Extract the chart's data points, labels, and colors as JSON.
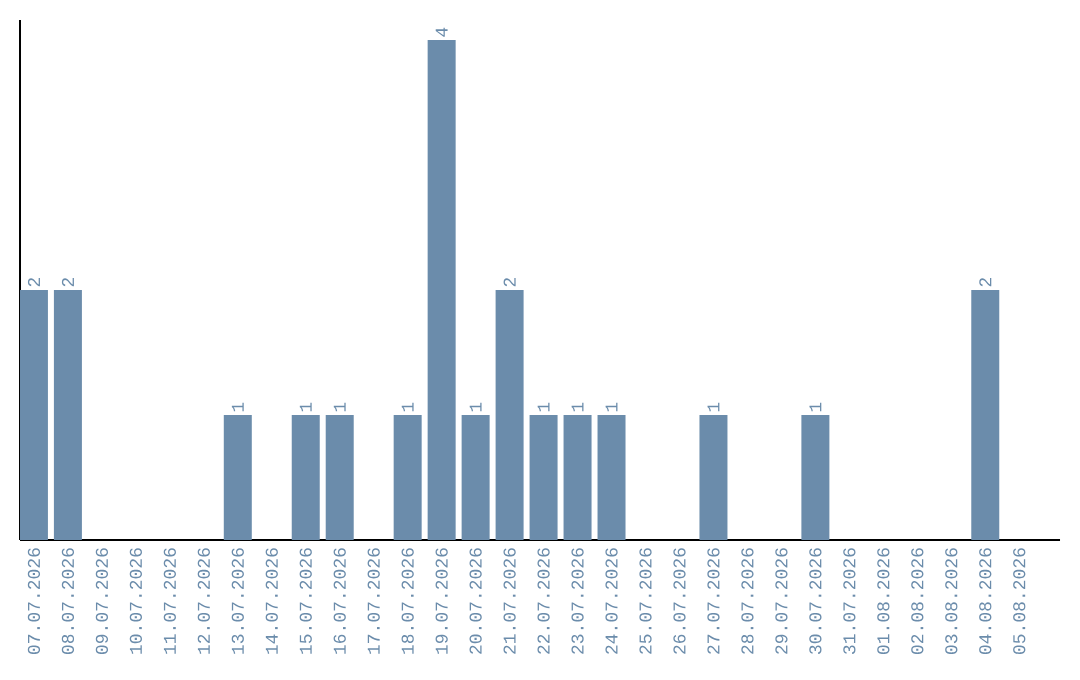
{
  "chart_data": {
    "type": "bar",
    "categories": [
      "07.07.2026",
      "08.07.2026",
      "09.07.2026",
      "10.07.2026",
      "11.07.2026",
      "12.07.2026",
      "13.07.2026",
      "14.07.2026",
      "15.07.2026",
      "16.07.2026",
      "17.07.2026",
      "18.07.2026",
      "19.07.2026",
      "20.07.2026",
      "21.07.2026",
      "22.07.2026",
      "23.07.2026",
      "24.07.2026",
      "25.07.2026",
      "26.07.2026",
      "27.07.2026",
      "28.07.2026",
      "29.07.2026",
      "30.07.2026",
      "31.07.2026",
      "01.08.2026",
      "02.08.2026",
      "03.08.2026",
      "04.08.2026",
      "05.08.2026"
    ],
    "values": [
      2,
      2,
      0,
      0,
      0,
      0,
      1,
      0,
      1,
      1,
      0,
      1,
      4,
      1,
      2,
      1,
      1,
      1,
      0,
      0,
      1,
      0,
      0,
      1,
      0,
      0,
      0,
      0,
      2,
      0
    ],
    "value_labels": [
      "2",
      "2",
      null,
      null,
      null,
      null,
      "1",
      null,
      "1",
      "1",
      null,
      "1",
      "4",
      "1",
      "2",
      "1",
      "1",
      "1",
      null,
      null,
      "1",
      null,
      null,
      "1",
      null,
      null,
      null,
      null,
      "2",
      null
    ],
    "color": "#6b8cab",
    "ylim": [
      0,
      4.16
    ],
    "tick_labels": "x"
  }
}
